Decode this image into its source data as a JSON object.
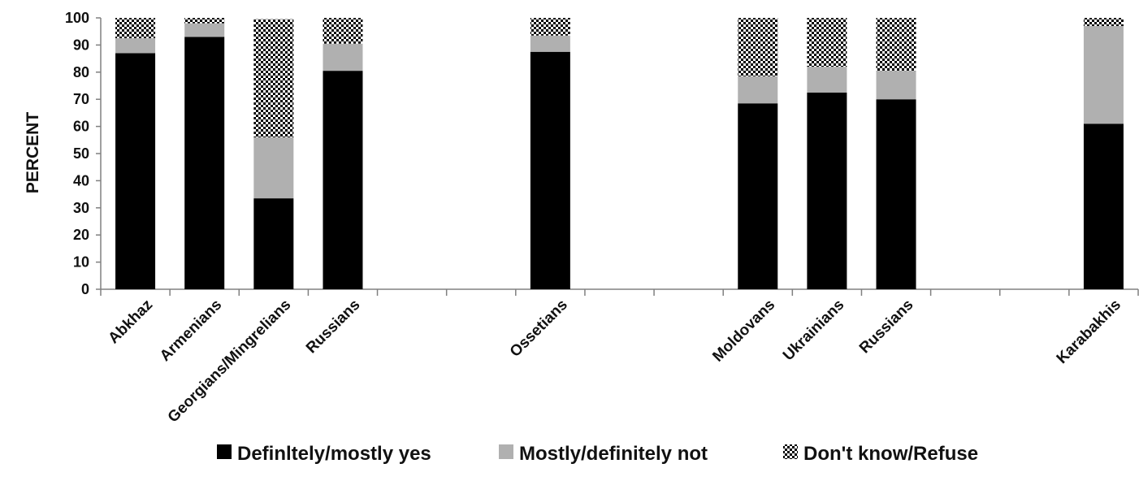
{
  "chart_data": {
    "type": "bar",
    "stacked": true,
    "ylabel": "PERCENT",
    "ylim": [
      0,
      100
    ],
    "yticks": [
      0,
      10,
      20,
      30,
      40,
      50,
      60,
      70,
      80,
      90,
      100
    ],
    "grid": false,
    "legend_position": "bottom",
    "slots": [
      "Abkhaz",
      "Armenians",
      "Georgians/Mingrelians",
      "Russians",
      "",
      "",
      "Ossetians",
      "",
      "",
      "Moldovans",
      "Ukrainians",
      "Russians",
      "",
      "",
      "Karabakhis"
    ],
    "categories": [
      "Abkhaz",
      "Armenians",
      "Georgians/Mingrelians",
      "Russians",
      "Ossetians",
      "Moldovans",
      "Ukrainians",
      "Russians",
      "Karabakhis"
    ],
    "series": [
      {
        "name": "Definltely/mostly yes",
        "color": "#000000",
        "pattern": "solid",
        "values": [
          87,
          93,
          33.5,
          80.5,
          87.5,
          68.5,
          72.5,
          70,
          61
        ]
      },
      {
        "name": "Mostly/definitely not",
        "color": "#b0b0b0",
        "pattern": "solid",
        "values": [
          5.5,
          5,
          22.5,
          10,
          6,
          10,
          9.5,
          10.5,
          36
        ]
      },
      {
        "name": "Don't know/Refuse",
        "color": "#000000",
        "pattern": "checker",
        "values": [
          7.5,
          2,
          43.5,
          9.5,
          6.5,
          21.5,
          18,
          19.5,
          3
        ]
      }
    ]
  }
}
